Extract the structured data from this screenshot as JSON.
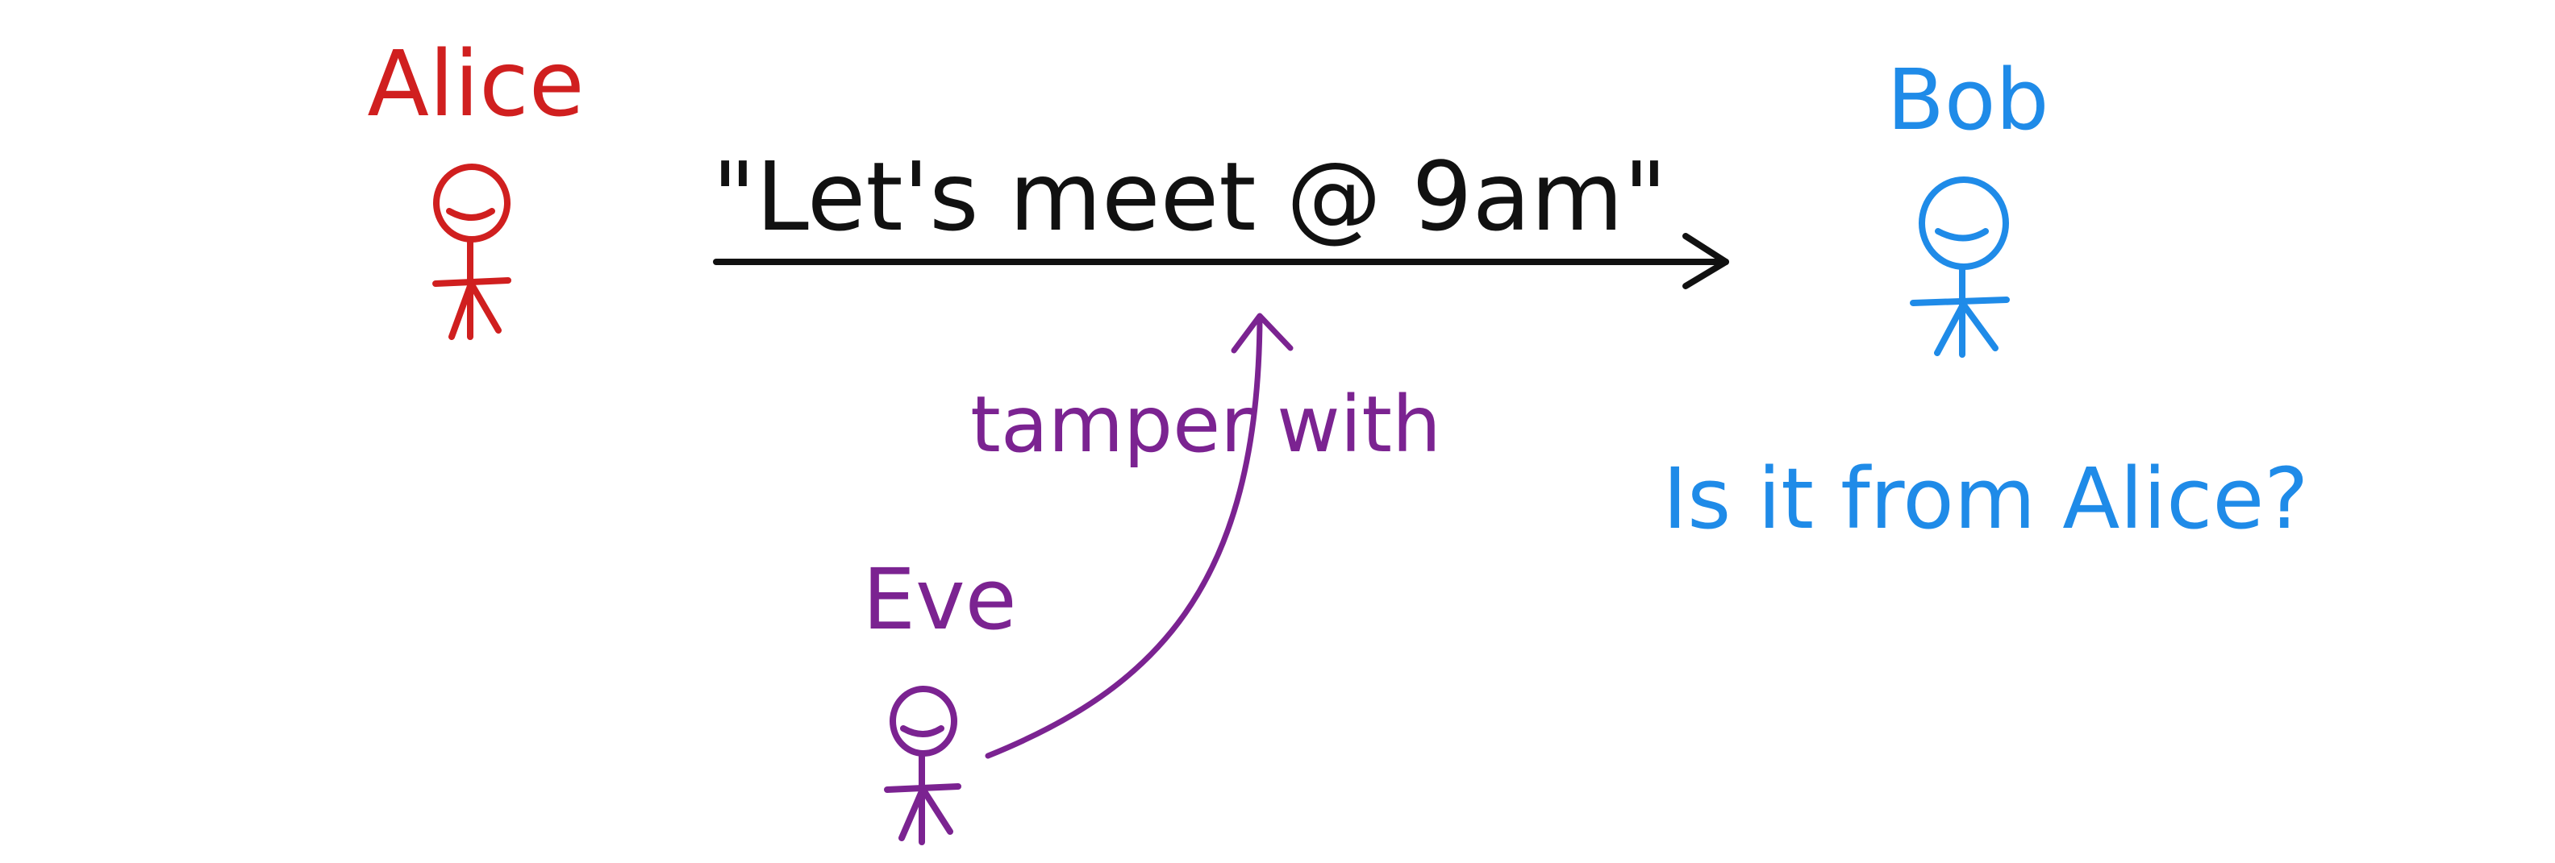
{
  "colors": {
    "alice": "#d01f1f",
    "bob": "#1f8be8",
    "eve": "#7b2391",
    "message": "#111111",
    "background": "#ffffff"
  },
  "actors": {
    "alice": {
      "label": "Alice"
    },
    "bob": {
      "label": "Bob"
    },
    "eve": {
      "label": "Eve"
    }
  },
  "message": {
    "text": "\"Let's meet @ 9am\""
  },
  "attack": {
    "label": "tamper with"
  },
  "question": {
    "text": "Is it from Alice?"
  },
  "icons": [
    "stick-figure-icon",
    "arrow-right-icon",
    "arrow-up-icon"
  ]
}
